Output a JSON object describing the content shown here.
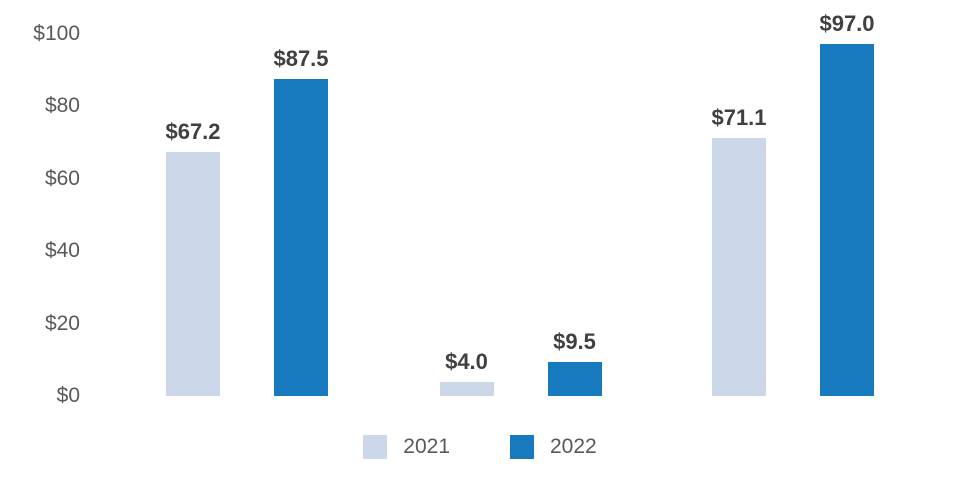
{
  "colors": {
    "series_2021": "#cdd7ea",
    "series_2022": "#1779be",
    "axis_text": "#595959",
    "data_label_text": "#404040",
    "background": "#ffffff"
  },
  "chart_data": {
    "type": "bar",
    "title": "",
    "xlabel": "",
    "ylabel": "",
    "categories": [
      "",
      "",
      ""
    ],
    "series": [
      {
        "name": "2021",
        "color": "#cdd7ea",
        "values": [
          67.2,
          4.0,
          71.1
        ]
      },
      {
        "name": "2022",
        "color": "#1779be",
        "values": [
          87.5,
          9.5,
          97.0
        ]
      }
    ],
    "value_labels": [
      [
        "$67.2",
        "$4.0",
        "$71.1"
      ],
      [
        "$87.5",
        "$9.5",
        "$97.0"
      ]
    ],
    "y_ticks": [
      "$100",
      "$80",
      "$60",
      "$40",
      "$20",
      "$0"
    ],
    "y_tick_values": [
      100,
      80,
      60,
      40,
      20,
      0
    ],
    "ylim": [
      0,
      100
    ],
    "grid": false,
    "axis_lines": false,
    "legend_position": "bottom"
  }
}
